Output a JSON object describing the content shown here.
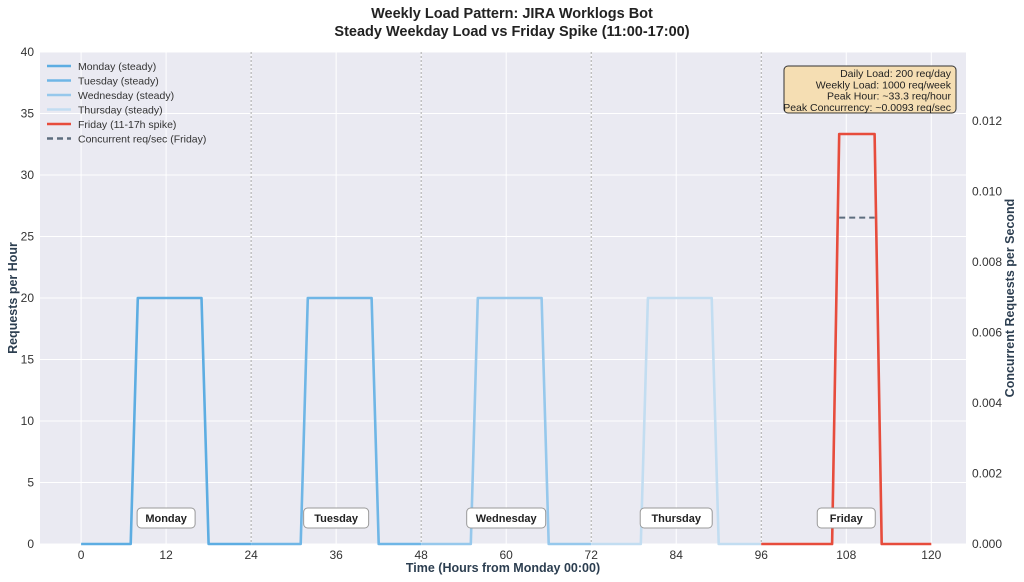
{
  "chart_data": {
    "type": "line",
    "title": "Weekly Load Pattern: JIRA Worklogs Bot",
    "subtitle": "Steady Weekday Load vs Friday Spike (11:00-17:00)",
    "xlabel": "Time (Hours from Monday 00:00)",
    "ylabel": "Requests per Hour",
    "y2label": "Concurrent Requests per Second",
    "xlim": [
      -5.8,
      124.9
    ],
    "ylim": [
      0,
      40
    ],
    "y2lim": [
      0,
      0.01396
    ],
    "xticks": [
      0,
      12,
      24,
      36,
      48,
      60,
      72,
      84,
      96,
      108,
      120
    ],
    "yticks": [
      0,
      5,
      10,
      15,
      20,
      25,
      30,
      35,
      40
    ],
    "y2ticks": [
      "0.000",
      "0.002",
      "0.004",
      "0.006",
      "0.008",
      "0.010",
      "0.012"
    ],
    "grid": true,
    "legend_position": "top-left",
    "day_dividers": [
      24,
      48,
      72,
      96
    ],
    "day_labels": [
      {
        "label": "Monday",
        "x": 12
      },
      {
        "label": "Tuesday",
        "x": 36
      },
      {
        "label": "Wednesday",
        "x": 60
      },
      {
        "label": "Thursday",
        "x": 84
      },
      {
        "label": "Friday",
        "x": 108
      }
    ],
    "series": [
      {
        "name": "Monday (steady)",
        "color": "#5DADE2",
        "axis": "left",
        "style": "solid",
        "x": [
          0,
          7,
          8,
          17,
          18,
          24
        ],
        "y": [
          0,
          0,
          20,
          20,
          0,
          0
        ]
      },
      {
        "name": "Tuesday (steady)",
        "color": "#6FB6E6",
        "axis": "left",
        "style": "solid",
        "x": [
          24,
          31,
          32,
          41,
          42,
          48
        ],
        "y": [
          0,
          0,
          20,
          20,
          0,
          0
        ]
      },
      {
        "name": "Wednesday (steady)",
        "color": "#96C8EC",
        "axis": "left",
        "style": "solid",
        "x": [
          48,
          55,
          56,
          65,
          66,
          72
        ],
        "y": [
          0,
          0,
          20,
          20,
          0,
          0
        ]
      },
      {
        "name": "Thursday (steady)",
        "color": "#C2DDF1",
        "axis": "left",
        "style": "solid",
        "x": [
          72,
          79,
          80,
          89,
          90,
          96
        ],
        "y": [
          0,
          0,
          20,
          20,
          0,
          0
        ]
      },
      {
        "name": "Friday (11-17h spike)",
        "color": "#E74C3C",
        "axis": "left",
        "style": "solid",
        "x": [
          96,
          106,
          107,
          112,
          113,
          120
        ],
        "y": [
          0,
          0,
          33.33,
          33.33,
          0,
          0
        ]
      },
      {
        "name": "Concurrent req/sec (Friday)",
        "color": "#5D6D7E",
        "axis": "right",
        "style": "dashed",
        "x": [
          107,
          112
        ],
        "y": [
          0.00926,
          0.00926
        ]
      }
    ],
    "annotation": [
      "Daily Load: 200 req/day",
      "Weekly Load: 1000 req/week",
      "Peak Hour: ~33.3 req/hour",
      "Peak Concurrency: ~0.0093 req/sec"
    ],
    "colors": {
      "plot_bg": "#EAEAF2",
      "annotation_bg": "#F5DEB3"
    }
  }
}
